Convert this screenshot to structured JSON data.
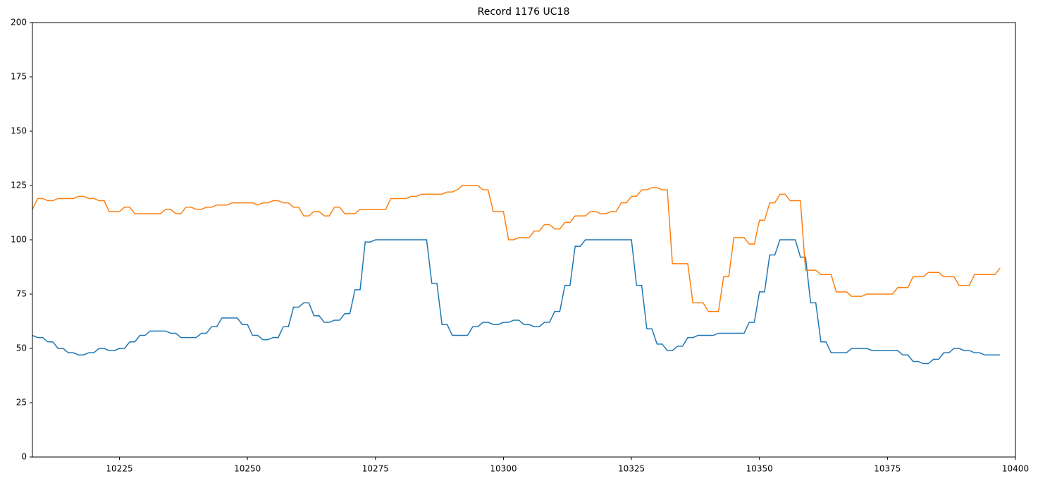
{
  "chart_data": {
    "type": "line",
    "title": "Record 1176 UC18",
    "x": [
      10208,
      10209,
      10210,
      10211,
      10212,
      10213,
      10214,
      10215,
      10216,
      10217,
      10218,
      10219,
      10220,
      10221,
      10222,
      10223,
      10224,
      10225,
      10226,
      10227,
      10228,
      10229,
      10230,
      10231,
      10232,
      10233,
      10234,
      10235,
      10236,
      10237,
      10238,
      10239,
      10240,
      10241,
      10242,
      10243,
      10244,
      10245,
      10246,
      10247,
      10248,
      10249,
      10250,
      10251,
      10252,
      10253,
      10254,
      10255,
      10256,
      10257,
      10258,
      10259,
      10260,
      10261,
      10262,
      10263,
      10264,
      10265,
      10266,
      10267,
      10268,
      10269,
      10270,
      10271,
      10272,
      10273,
      10274,
      10275,
      10276,
      10277,
      10278,
      10279,
      10280,
      10281,
      10282,
      10283,
      10284,
      10285,
      10286,
      10287,
      10288,
      10289,
      10290,
      10291,
      10292,
      10293,
      10294,
      10295,
      10296,
      10297,
      10298,
      10299,
      10300,
      10301,
      10302,
      10303,
      10304,
      10305,
      10306,
      10307,
      10308,
      10309,
      10310,
      10311,
      10312,
      10313,
      10314,
      10315,
      10316,
      10317,
      10318,
      10319,
      10320,
      10321,
      10322,
      10323,
      10324,
      10325,
      10326,
      10327,
      10328,
      10329,
      10330,
      10331,
      10332,
      10333,
      10334,
      10335,
      10336,
      10337,
      10338,
      10339,
      10340,
      10341,
      10342,
      10343,
      10344,
      10345,
      10346,
      10347,
      10348,
      10349,
      10350,
      10351,
      10352,
      10353,
      10354,
      10355,
      10356,
      10357,
      10358,
      10359,
      10360,
      10361,
      10362,
      10363,
      10364,
      10365,
      10366,
      10367,
      10368,
      10369,
      10370,
      10371,
      10372,
      10373,
      10374,
      10375,
      10376,
      10377,
      10378,
      10379,
      10380,
      10381,
      10382,
      10383,
      10384,
      10385,
      10386,
      10387,
      10388,
      10389,
      10390,
      10391,
      10392,
      10393,
      10394,
      10395,
      10396,
      10397
    ],
    "series": [
      {
        "color": "#1f77b4",
        "values": [
          56,
          55,
          55,
          53,
          53,
          50,
          50,
          48,
          48,
          47,
          47,
          48,
          48,
          50,
          50,
          49,
          49,
          50,
          50,
          53,
          53,
          56,
          56,
          58,
          58,
          58,
          58,
          57,
          57,
          55,
          55,
          55,
          55,
          57,
          57,
          60,
          60,
          64,
          64,
          64,
          64,
          61,
          61,
          56,
          56,
          54,
          54,
          55,
          55,
          60,
          60,
          69,
          69,
          71,
          71,
          65,
          65,
          62,
          62,
          63,
          63,
          66,
          66,
          77,
          77,
          99,
          99,
          100,
          100,
          100,
          100,
          100,
          100,
          100,
          100,
          100,
          100,
          100,
          80,
          80,
          61,
          61,
          56,
          56,
          56,
          56,
          60,
          60,
          62,
          62,
          61,
          61,
          62,
          62,
          63,
          63,
          61,
          61,
          60,
          60,
          62,
          62,
          67,
          67,
          79,
          79,
          97,
          97,
          100,
          100,
          100,
          100,
          100,
          100,
          100,
          100,
          100,
          100,
          79,
          79,
          59,
          59,
          52,
          52,
          49,
          49,
          51,
          51,
          55,
          55,
          56,
          56,
          56,
          56,
          57,
          57,
          57,
          57,
          57,
          57,
          62,
          62,
          76,
          76,
          93,
          93,
          100,
          100,
          100,
          100,
          92,
          92,
          71,
          71,
          53,
          53,
          48,
          48,
          48,
          48,
          50,
          50,
          50,
          50,
          49,
          49,
          49,
          49,
          49,
          49,
          47,
          47,
          44,
          44,
          43,
          43,
          45,
          45,
          48,
          48,
          50,
          50,
          49,
          49,
          48,
          48,
          47,
          47,
          47,
          47
        ]
      },
      {
        "color": "#ff7f0e",
        "values": [
          114,
          119,
          119,
          118,
          118,
          119,
          119,
          119,
          119,
          120,
          120,
          119,
          119,
          118,
          118,
          113,
          113,
          113,
          115,
          115,
          112,
          112,
          112,
          112,
          112,
          112,
          114,
          114,
          112,
          112,
          115,
          115,
          114,
          114,
          115,
          115,
          116,
          116,
          116,
          117,
          117,
          117,
          117,
          117,
          116,
          117,
          117,
          118,
          118,
          117,
          117,
          115,
          115,
          111,
          111,
          113,
          113,
          111,
          111,
          115,
          115,
          112,
          112,
          112,
          114,
          114,
          114,
          114,
          114,
          114,
          119,
          119,
          119,
          119,
          120,
          120,
          121,
          121,
          121,
          121,
          121,
          122,
          122,
          123,
          125,
          125,
          125,
          125,
          123,
          123,
          113,
          113,
          113,
          100,
          100,
          101,
          101,
          101,
          104,
          104,
          107,
          107,
          105,
          105,
          108,
          108,
          111,
          111,
          111,
          113,
          113,
          112,
          112,
          113,
          113,
          117,
          117,
          120,
          120,
          123,
          123,
          124,
          124,
          123,
          123,
          89,
          89,
          89,
          89,
          71,
          71,
          71,
          67,
          67,
          67,
          83,
          83,
          101,
          101,
          101,
          98,
          98,
          109,
          109,
          117,
          117,
          121,
          121,
          118,
          118,
          118,
          86,
          86,
          86,
          84,
          84,
          84,
          76,
          76,
          76,
          74,
          74,
          74,
          75,
          75,
          75,
          75,
          75,
          75,
          78,
          78,
          78,
          83,
          83,
          83,
          85,
          85,
          85,
          83,
          83,
          83,
          79,
          79,
          79,
          84,
          84,
          84,
          84,
          84,
          87
        ]
      }
    ],
    "xlim": [
      10208,
      10400
    ],
    "xticks": [
      10225,
      10250,
      10275,
      10300,
      10325,
      10350,
      10375,
      10400
    ],
    "ylim": [
      0,
      200
    ],
    "yticks": [
      0,
      25,
      50,
      75,
      100,
      125,
      150,
      175,
      200
    ],
    "grid": false
  }
}
